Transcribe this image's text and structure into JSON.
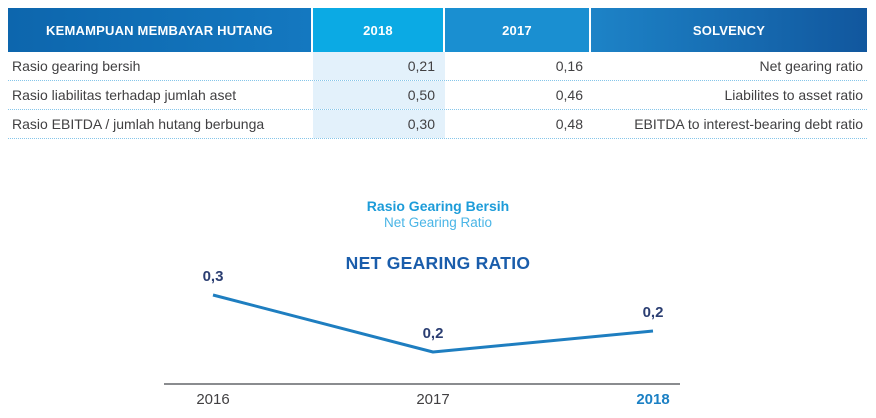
{
  "table": {
    "columns": {
      "label": {
        "header": "KEMAMPUAN MEMBAYAR HUTANG"
      },
      "y2018": {
        "header": "2018"
      },
      "y2017": {
        "header": "2017"
      },
      "solvency": {
        "header": "SOLVENCY"
      }
    },
    "rows": [
      {
        "label": "Rasio gearing bersih",
        "y2018": "0,21",
        "y2017": "0,16",
        "solvency": "Net gearing ratio"
      },
      {
        "label": "Rasio liabilitas terhadap jumlah aset",
        "y2018": "0,50",
        "y2017": "0,46",
        "solvency": "Liabilites to asset ratio"
      },
      {
        "label": "Rasio EBITDA / jumlah hutang berbunga",
        "y2018": "0,30",
        "y2017": "0,48",
        "solvency": "EBITDA to interest-bearing debt ratio"
      }
    ]
  },
  "chart": {
    "subtitle_id": "Rasio Gearing Bersih",
    "subtitle_en": "Net Gearing Ratio",
    "heading": "NET GEARING RATIO"
  },
  "chart_data": {
    "type": "line",
    "title": "NET GEARING RATIO",
    "categories": [
      "2016",
      "2017",
      "2018"
    ],
    "values": [
      0.3,
      0.2,
      0.2
    ],
    "point_labels": [
      "0,3",
      "0,2",
      "0,2"
    ],
    "plotted_values": [
      0.3,
      0.16,
      0.21
    ],
    "highlighted_category": "2018",
    "xlabel": "",
    "ylabel": "",
    "grid": false,
    "legend": "none",
    "colors": {
      "line": "#1e7ec0",
      "axis": "#8a8c8f",
      "point_label": "#2b3e72",
      "category_label": "#414042",
      "highlighted_category_label": "#1b80c4"
    }
  },
  "colors": {
    "header_label_bg_start": "#0d66ad",
    "header_label_bg_end": "#1478c0",
    "header_2018_bg": "#0baae4",
    "header_2017_bg": "#1a8fd1",
    "header_solvency_bg_start": "#1d83c7",
    "header_solvency_bg_end": "#11579e",
    "column_2018_bg": "#e3f1fb",
    "row_divider": "#85c6ea",
    "table_text": "#414042",
    "subtitle_id": "#1d9cd9",
    "subtitle_en": "#4ab5e6",
    "chart_heading": "#1a5dab"
  }
}
